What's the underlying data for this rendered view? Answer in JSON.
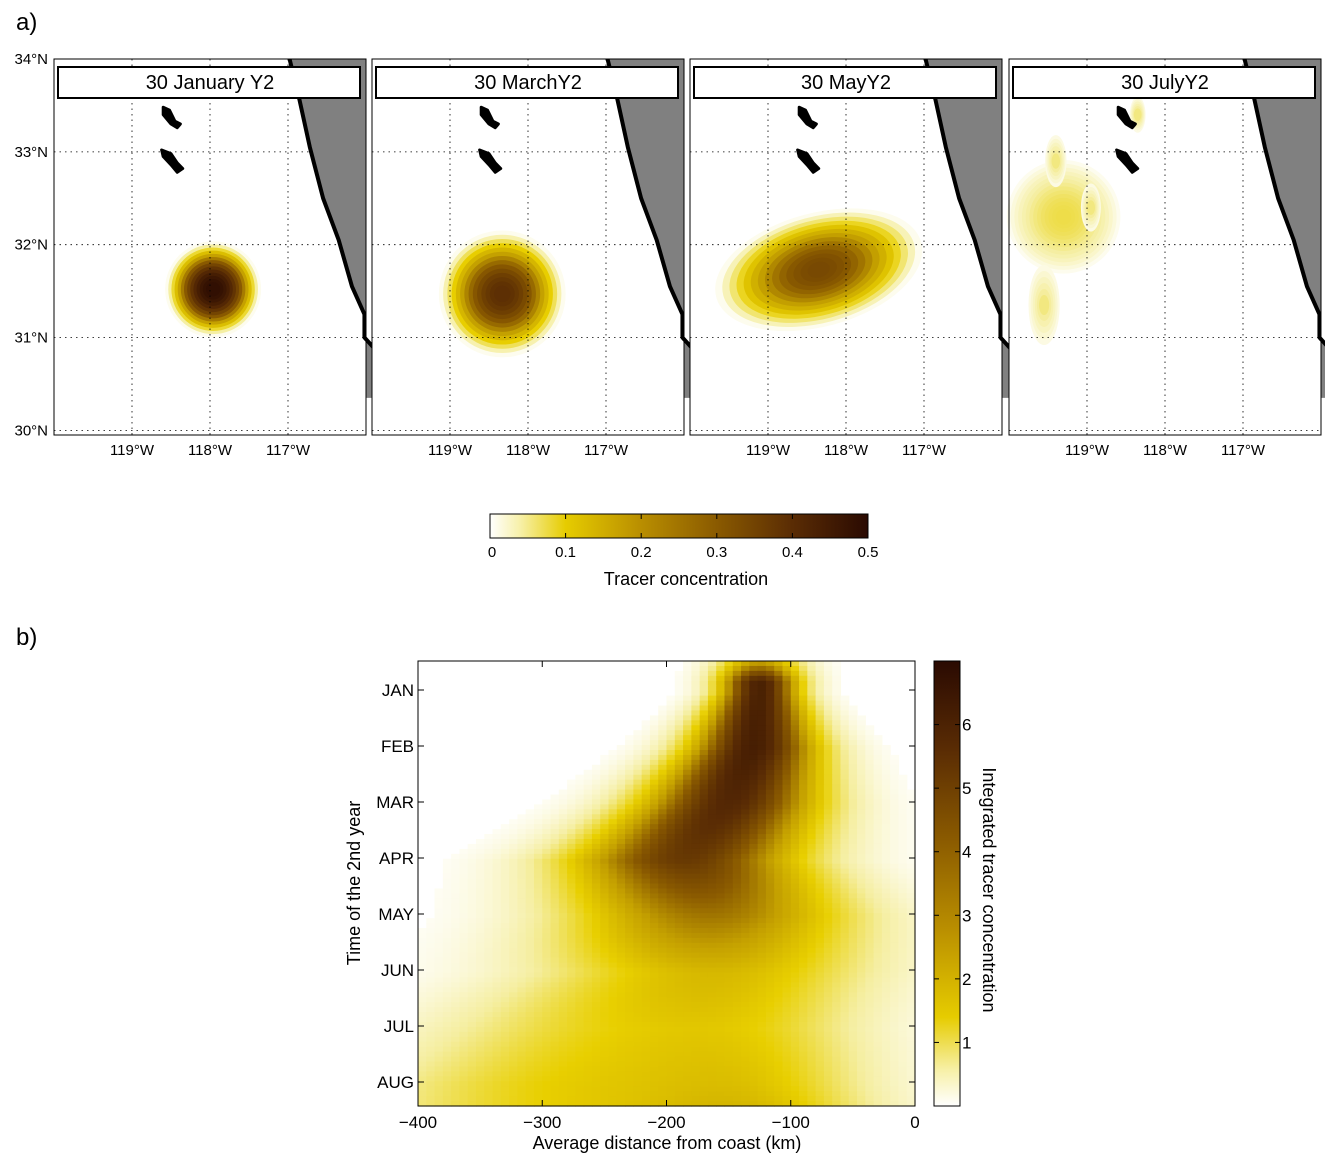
{
  "panel_a": {
    "label": "a)",
    "lat_ticks": [
      "34°N",
      "33°N",
      "32°N",
      "31°N",
      "30°N"
    ],
    "lon_ticks": [
      "119°W",
      "118°W",
      "117°W"
    ],
    "maps": [
      {
        "title": "30 January Y2",
        "blob": {
          "lon": -117.96,
          "lat": 31.52,
          "peak": 0.5,
          "spread": 1.0
        }
      },
      {
        "title": "30 MarchY2",
        "blob": {
          "lon": -118.33,
          "lat": 31.47,
          "peak": 0.42,
          "spread": 1.35
        }
      },
      {
        "title": "30 MayY2",
        "blob": {
          "lon": -118.35,
          "lat": 31.73,
          "peak": 0.37,
          "spread": 1.6
        }
      },
      {
        "title": "30 JulyY2",
        "blob": {
          "lon": -119.3,
          "lat": 32.3,
          "peak": 0.12,
          "spread": 1.2
        }
      }
    ],
    "map_extent": {
      "lon": [
        -120.0,
        -116.0
      ],
      "lat": [
        29.95,
        34.0
      ]
    },
    "colorbar": {
      "label": "Tracer concentration",
      "ticks": [
        "0",
        "0.1",
        "0.2",
        "0.3",
        "0.4",
        "0.5"
      ],
      "range": [
        0,
        0.5
      ]
    }
  },
  "panel_b": {
    "label": "b)",
    "xlabel": "Average distance from coast (km)",
    "ylabel": "Time of the 2nd year",
    "x_ticks": [
      "−400",
      "−300",
      "−200",
      "−100",
      "0"
    ],
    "months": [
      "JAN",
      "FEB",
      "MAR",
      "APR",
      "MAY",
      "JUN",
      "JUL",
      "AUG"
    ],
    "colorbar": {
      "label": "Integrated tracer concentration",
      "ticks": [
        "1",
        "2",
        "3",
        "4",
        "5",
        "6"
      ],
      "range": [
        0,
        7
      ]
    }
  },
  "colors": {
    "land": "#808080",
    "coast": "#000000",
    "colormap": [
      "#ffffff",
      "#f5eea0",
      "#e8cf00",
      "#c4a000",
      "#8a5a00",
      "#5a2c04",
      "#2a0a02"
    ]
  },
  "chart_data": [
    {
      "type": "heatmap",
      "title": "",
      "xlabel": "",
      "ylabel": "",
      "panels": [
        "30 January Y2",
        "30 MarchY2",
        "30 MayY2",
        "30 JulyY2"
      ],
      "xlim": [
        -120.0,
        -116.0
      ],
      "ylim": [
        29.95,
        34.0
      ],
      "colorbar_label": "Tracer concentration",
      "colorbar_range": [
        0,
        0.5
      ]
    },
    {
      "type": "heatmap",
      "xlabel": "Average distance from coast (km)",
      "ylabel": "Time of the 2nd year",
      "xlim": [
        -400,
        0
      ],
      "y_categories": [
        "JAN",
        "FEB",
        "MAR",
        "APR",
        "MAY",
        "JUN",
        "JUL",
        "AUG"
      ],
      "colorbar_label": "Integrated tracer concentration",
      "colorbar_range": [
        0,
        7
      ],
      "ridge": [
        {
          "month": "JAN",
          "center_km": -125,
          "peak": 6.2
        },
        {
          "month": "FEB",
          "center_km": -130,
          "peak": 6.3
        },
        {
          "month": "MAR",
          "center_km": -150,
          "peak": 6.0
        },
        {
          "month": "APR",
          "center_km": -185,
          "peak": 5.5
        },
        {
          "month": "MAY",
          "center_km": -165,
          "peak": 4.2
        },
        {
          "month": "JUN",
          "center_km": -175,
          "peak": 2.6
        },
        {
          "month": "JUL",
          "center_km": -230,
          "peak": 2.2
        },
        {
          "month": "AUG",
          "center_km": -260,
          "peak": 2.4
        }
      ]
    }
  ]
}
